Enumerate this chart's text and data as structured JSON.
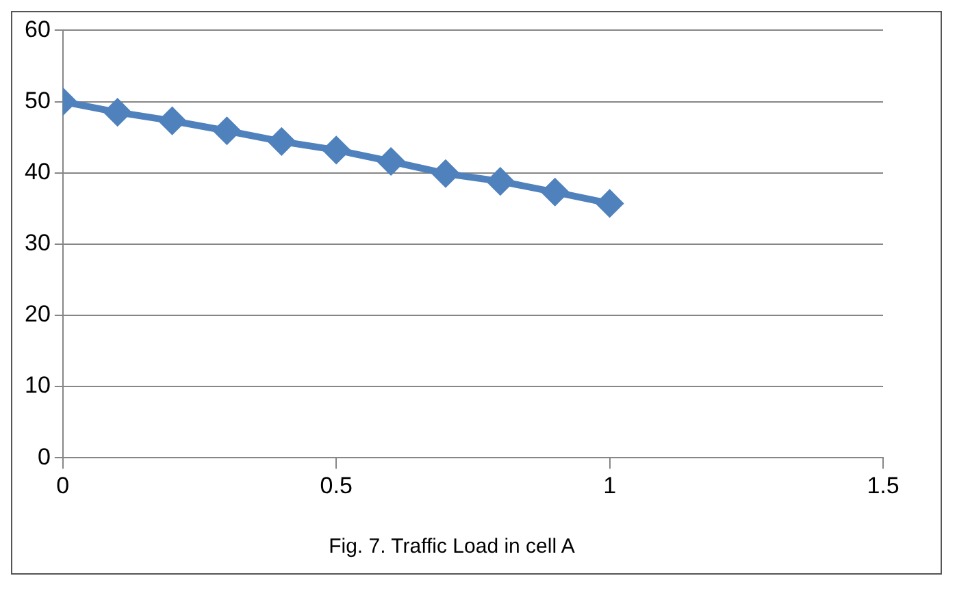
{
  "chart_data": {
    "type": "line",
    "title": "Fig. 7. Traffic Load in cell A",
    "x": [
      0,
      0.1,
      0.2,
      0.3,
      0.4,
      0.5,
      0.6,
      0.7,
      0.8,
      0.9,
      1
    ],
    "series": [
      {
        "color": "#4f81bd",
        "values": [
          50,
          48.5,
          47.3,
          45.9,
          44.4,
          43.2,
          41.6,
          39.9,
          38.8,
          37.3,
          35.7
        ]
      }
    ],
    "xlim": [
      0,
      1.5
    ],
    "xticks": [
      0,
      0.5,
      1,
      1.5
    ],
    "ylim": [
      0,
      60
    ],
    "yticks": [
      0,
      10,
      20,
      30,
      40,
      50,
      60
    ],
    "grid": "y",
    "legend": false,
    "marker": "diamond",
    "line_style": "solid"
  }
}
